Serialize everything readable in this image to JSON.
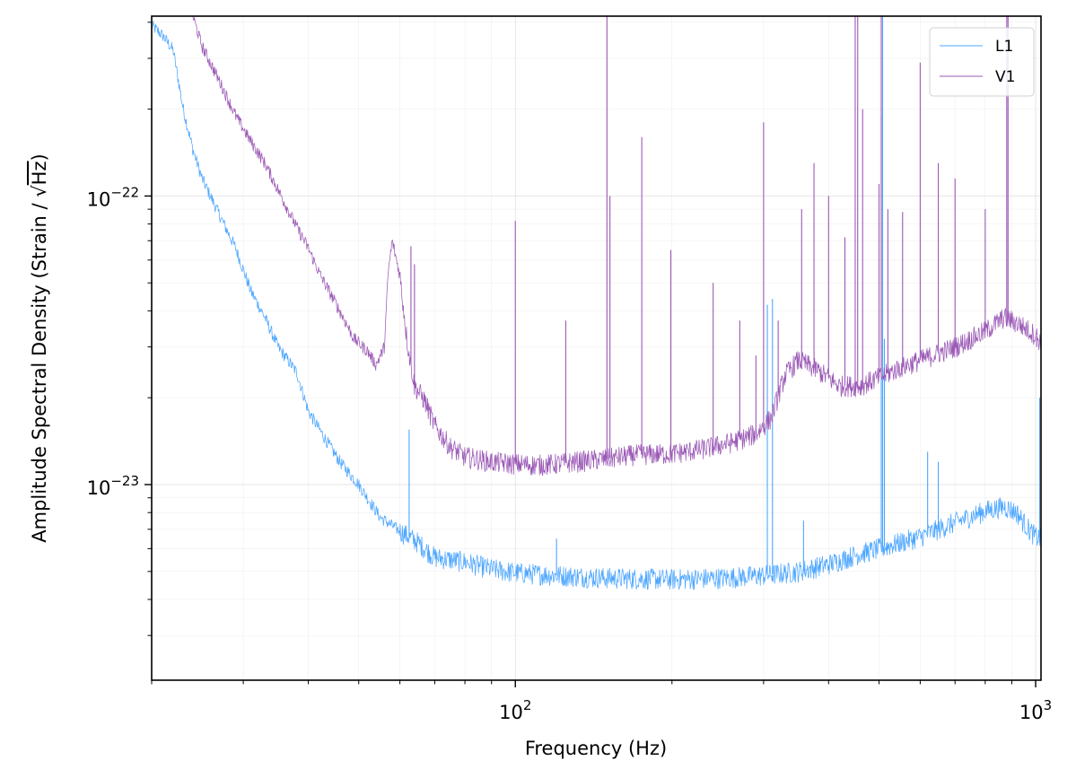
{
  "chart_data": {
    "type": "line",
    "title": "",
    "xlabel": "Frequency (Hz)",
    "ylabel_prefix": "Amplitude Spectral Density (Strain / ",
    "ylabel_sqrt": "√",
    "ylabel_unit": "Hz",
    "ylabel_suffix": ")",
    "xscale": "log",
    "yscale": "log",
    "xlim": [
      20,
      1024
    ],
    "ylim": [
      2.1e-24,
      4.2e-22
    ],
    "grid": true,
    "legend_position": "top-right",
    "x_ticks": [
      {
        "value": 100,
        "base": "10",
        "exp": "2"
      },
      {
        "value": 1000,
        "base": "10",
        "exp": "3"
      }
    ],
    "y_ticks": [
      {
        "value": 1e-23,
        "base": "10",
        "exp": "−23"
      },
      {
        "value": 1e-22,
        "base": "10",
        "exp": "−22"
      }
    ],
    "series": [
      {
        "name": "L1",
        "color": "#4da6ff",
        "baseline": [
          [
            20,
            3.9e-22
          ],
          [
            21,
            3.6e-22
          ],
          [
            22,
            3.2e-22
          ],
          [
            23,
            2e-22
          ],
          [
            24,
            1.45e-22
          ],
          [
            25,
            1.15e-22
          ],
          [
            27,
            8.6e-23
          ],
          [
            29,
            6.6e-23
          ],
          [
            31,
            4.7e-23
          ],
          [
            33,
            3.8e-23
          ],
          [
            35,
            3e-23
          ],
          [
            38,
            2.45e-23
          ],
          [
            40,
            1.8e-23
          ],
          [
            43,
            1.45e-23
          ],
          [
            46,
            1.2e-23
          ],
          [
            50,
            1e-23
          ],
          [
            55,
            7.7e-24
          ],
          [
            60,
            6.9e-24
          ],
          [
            65,
            6.3e-24
          ],
          [
            70,
            5.6e-24
          ],
          [
            80,
            5.4e-24
          ],
          [
            90,
            5.1e-24
          ],
          [
            100,
            4.95e-24
          ],
          [
            120,
            4.85e-24
          ],
          [
            150,
            4.75e-24
          ],
          [
            200,
            4.7e-24
          ],
          [
            250,
            4.75e-24
          ],
          [
            300,
            4.85e-24
          ],
          [
            350,
            5e-24
          ],
          [
            400,
            5.3e-24
          ],
          [
            450,
            5.7e-24
          ],
          [
            500,
            6e-24
          ],
          [
            600,
            6.6e-24
          ],
          [
            700,
            7.4e-24
          ],
          [
            800,
            8.1e-24
          ],
          [
            870,
            8.4e-24
          ],
          [
            920,
            8e-24
          ],
          [
            970,
            7e-24
          ],
          [
            1000,
            6.6e-24
          ],
          [
            1024,
            6.5e-24
          ]
        ],
        "lines": [
          [
            62.5,
            1.55e-23
          ],
          [
            120,
            6.5e-24
          ],
          [
            305,
            4.2e-23
          ],
          [
            312,
            4.4e-23
          ],
          [
            358,
            7.5e-24
          ],
          [
            505,
            1.9e-22
          ],
          [
            508,
            4.3e-22
          ],
          [
            512,
            3.2e-23
          ],
          [
            620,
            1.3e-23
          ],
          [
            650,
            1.2e-23
          ],
          [
            1018,
            2e-23
          ]
        ]
      },
      {
        "name": "V1",
        "color": "#9b59b6",
        "baseline": [
          [
            24,
            4.2e-22
          ],
          [
            25,
            3.3e-22
          ],
          [
            27,
            2.5e-22
          ],
          [
            29,
            1.9e-22
          ],
          [
            31,
            1.55e-22
          ],
          [
            33,
            1.3e-22
          ],
          [
            35,
            1.05e-22
          ],
          [
            38,
            7.8e-23
          ],
          [
            40,
            6.6e-23
          ],
          [
            42,
            5.4e-23
          ],
          [
            45,
            4.3e-23
          ],
          [
            47,
            3.7e-23
          ],
          [
            49,
            3.2e-23
          ],
          [
            52,
            2.9e-23
          ],
          [
            54,
            2.6e-23
          ],
          [
            56,
            3e-23
          ],
          [
            57,
            5.5e-23
          ],
          [
            58,
            7e-23
          ],
          [
            60,
            5.3e-23
          ],
          [
            62,
            3.1e-23
          ],
          [
            64,
            2.2e-23
          ],
          [
            67,
            1.95e-23
          ],
          [
            70,
            1.6e-23
          ],
          [
            75,
            1.35e-23
          ],
          [
            80,
            1.25e-23
          ],
          [
            90,
            1.2e-23
          ],
          [
            100,
            1.18e-23
          ],
          [
            110,
            1.17e-23
          ],
          [
            120,
            1.18e-23
          ],
          [
            130,
            1.2e-23
          ],
          [
            150,
            1.23e-23
          ],
          [
            170,
            1.27e-23
          ],
          [
            200,
            1.28e-23
          ],
          [
            230,
            1.33e-23
          ],
          [
            260,
            1.4e-23
          ],
          [
            290,
            1.5e-23
          ],
          [
            310,
            1.7e-23
          ],
          [
            330,
            2.4e-23
          ],
          [
            350,
            2.7e-23
          ],
          [
            380,
            2.5e-23
          ],
          [
            420,
            2.2e-23
          ],
          [
            460,
            2.2e-23
          ],
          [
            500,
            2.35e-23
          ],
          [
            550,
            2.55e-23
          ],
          [
            600,
            2.7e-23
          ],
          [
            700,
            3e-23
          ],
          [
            800,
            3.4e-23
          ],
          [
            870,
            3.8e-23
          ],
          [
            930,
            3.6e-23
          ],
          [
            1000,
            3.3e-23
          ],
          [
            1024,
            3.1e-23
          ]
        ],
        "lines": [
          [
            63,
            6.7e-23
          ],
          [
            64,
            5.8e-23
          ],
          [
            100,
            8.2e-23
          ],
          [
            125,
            3.7e-23
          ],
          [
            150,
            4.3e-22
          ],
          [
            152,
            1e-22
          ],
          [
            175,
            1.6e-22
          ],
          [
            199,
            6.5e-23
          ],
          [
            240,
            5e-23
          ],
          [
            270,
            3.7e-23
          ],
          [
            290,
            2.8e-23
          ],
          [
            300,
            1.8e-22
          ],
          [
            320,
            3.7e-23
          ],
          [
            355,
            9e-23
          ],
          [
            375,
            1.3e-22
          ],
          [
            400,
            1e-22
          ],
          [
            430,
            7.2e-23
          ],
          [
            450,
            4.2e-22
          ],
          [
            455,
            4.2e-22
          ],
          [
            465,
            2e-22
          ],
          [
            500,
            1.1e-22
          ],
          [
            505,
            4.2e-22
          ],
          [
            520,
            9e-23
          ],
          [
            555,
            8.8e-23
          ],
          [
            600,
            2.9e-22
          ],
          [
            650,
            1.3e-22
          ],
          [
            700,
            1.15e-22
          ],
          [
            800,
            9e-23
          ],
          [
            880,
            4.2e-22
          ],
          [
            885,
            4.2e-22
          ],
          [
            1005,
            3e-23
          ]
        ]
      }
    ]
  }
}
